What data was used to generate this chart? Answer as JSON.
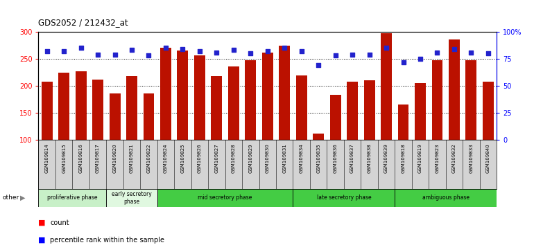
{
  "title": "GDS2052 / 212432_at",
  "samples": [
    "GSM109814",
    "GSM109815",
    "GSM109816",
    "GSM109817",
    "GSM109820",
    "GSM109821",
    "GSM109822",
    "GSM109824",
    "GSM109825",
    "GSM109826",
    "GSM109827",
    "GSM109828",
    "GSM109829",
    "GSM109830",
    "GSM109831",
    "GSM109834",
    "GSM109835",
    "GSM109836",
    "GSM109837",
    "GSM109838",
    "GSM109839",
    "GSM109818",
    "GSM109819",
    "GSM109823",
    "GSM109832",
    "GSM109833",
    "GSM109840"
  ],
  "counts": [
    207,
    224,
    227,
    211,
    186,
    218,
    186,
    270,
    265,
    257,
    218,
    236,
    248,
    261,
    274,
    219,
    111,
    183,
    207,
    210,
    298,
    165,
    205,
    248,
    286,
    247,
    207
  ],
  "percentiles": [
    82,
    82,
    85,
    79,
    79,
    83,
    78,
    85,
    84,
    82,
    81,
    83,
    80,
    82,
    85,
    82,
    69,
    78,
    79,
    79,
    85,
    72,
    75,
    81,
    84,
    81,
    80
  ],
  "phase_defs": [
    {
      "label": "proliferative phase",
      "start": 0,
      "end": 3,
      "color": "#c8f0c8"
    },
    {
      "label": "early secretory\nphase",
      "start": 4,
      "end": 6,
      "color": "#e0f8e0"
    },
    {
      "label": "mid secretory phase",
      "start": 7,
      "end": 14,
      "color": "#44cc44"
    },
    {
      "label": "late secretory phase",
      "start": 15,
      "end": 20,
      "color": "#44cc44"
    },
    {
      "label": "ambiguous phase",
      "start": 21,
      "end": 26,
      "color": "#44cc44"
    }
  ],
  "ylim_left": [
    100,
    300
  ],
  "yticks_left": [
    100,
    150,
    200,
    250,
    300
  ],
  "ylim_right": [
    0,
    100
  ],
  "yticks_right": [
    0,
    25,
    50,
    75,
    100
  ],
  "ytick_right_labels": [
    "0",
    "25",
    "50",
    "75",
    "100%"
  ],
  "bar_color": "#bb1100",
  "dot_color": "#2222cc",
  "bar_bottom": 100,
  "bg_color": "#ffffff",
  "grid_color": "#333333",
  "xtick_bg": "#d4d4d4"
}
